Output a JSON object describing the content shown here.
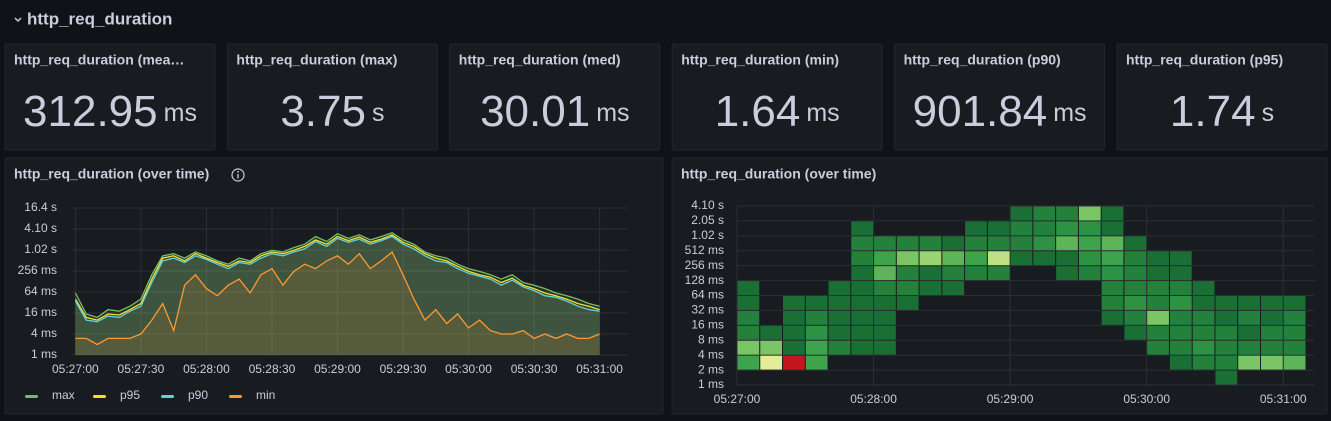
{
  "header": {
    "title": "http_req_duration"
  },
  "stats": [
    {
      "title": "http_req_duration (mea…",
      "value": 312.95,
      "unit": "ms"
    },
    {
      "title": "http_req_duration (max)",
      "value": 3.75,
      "unit": "s"
    },
    {
      "title": "http_req_duration (med)",
      "value": 30.01,
      "unit": "ms"
    },
    {
      "title": "http_req_duration (min)",
      "value": 1.64,
      "unit": "ms"
    },
    {
      "title": "http_req_duration (p90)",
      "value": 901.84,
      "unit": "ms"
    },
    {
      "title": "http_req_duration (p95)",
      "value": 1.74,
      "unit": "s"
    }
  ],
  "chart_data": [
    {
      "type": "line",
      "title": "http_req_duration (over time)",
      "log_scale": true,
      "grid": true,
      "legend": "bottom",
      "x": [
        "05:27:00",
        "05:27:05",
        "05:27:10",
        "05:27:15",
        "05:27:20",
        "05:27:25",
        "05:27:30",
        "05:27:35",
        "05:27:40",
        "05:27:45",
        "05:27:50",
        "05:27:55",
        "05:28:00",
        "05:28:05",
        "05:28:10",
        "05:28:15",
        "05:28:20",
        "05:28:25",
        "05:28:30",
        "05:28:35",
        "05:28:40",
        "05:28:45",
        "05:28:50",
        "05:28:55",
        "05:29:00",
        "05:29:05",
        "05:29:10",
        "05:29:15",
        "05:29:20",
        "05:29:25",
        "05:29:30",
        "05:29:35",
        "05:29:40",
        "05:29:45",
        "05:29:50",
        "05:29:55",
        "05:30:00",
        "05:30:05",
        "05:30:10",
        "05:30:15",
        "05:30:20",
        "05:30:25",
        "05:30:30",
        "05:30:35",
        "05:30:40",
        "05:30:45",
        "05:30:50",
        "05:30:55",
        "05:31:00"
      ],
      "xlim": [
        "05:26:58",
        "05:31:13"
      ],
      "xticks": [
        "05:27:00",
        "05:27:30",
        "05:28:00",
        "05:28:30",
        "05:29:00",
        "05:29:30",
        "05:30:00",
        "05:30:30",
        "05:31:00"
      ],
      "ylim": [
        1,
        16384
      ],
      "yticks": [
        {
          "value": 1,
          "label": "1 ms"
        },
        {
          "value": 4,
          "label": "4 ms"
        },
        {
          "value": 16,
          "label": "16 ms"
        },
        {
          "value": 64,
          "label": "64 ms"
        },
        {
          "value": 256,
          "label": "256 ms"
        },
        {
          "value": 1024,
          "label": "1.02 s"
        },
        {
          "value": 4096,
          "label": "4.10 s"
        },
        {
          "value": 16384,
          "label": "16.4 s"
        }
      ],
      "series": [
        {
          "name": "max",
          "color": "#73bf69",
          "values": [
            60,
            15,
            12,
            20,
            18,
            25,
            40,
            200,
            700,
            800,
            600,
            900,
            700,
            500,
            400,
            600,
            500,
            800,
            1000,
            900,
            1200,
            1500,
            2500,
            1800,
            3000,
            2200,
            2800,
            2000,
            2500,
            3200,
            2000,
            1500,
            900,
            700,
            600,
            400,
            300,
            250,
            200,
            150,
            200,
            120,
            100,
            80,
            60,
            50,
            40,
            30,
            25
          ]
        },
        {
          "name": "p95",
          "color": "#fade2a",
          "values": [
            40,
            12,
            10,
            15,
            14,
            20,
            30,
            150,
            600,
            700,
            500,
            800,
            600,
            450,
            350,
            500,
            450,
            700,
            900,
            800,
            1000,
            1300,
            2000,
            1500,
            2500,
            1900,
            2400,
            1700,
            2100,
            2800,
            1700,
            1300,
            800,
            600,
            500,
            350,
            250,
            200,
            170,
            120,
            160,
            100,
            80,
            60,
            50,
            40,
            30,
            25,
            20
          ]
        },
        {
          "name": "p90",
          "color": "#5ed4e0",
          "values": [
            35,
            10,
            9,
            13,
            12,
            18,
            25,
            120,
            500,
            600,
            450,
            700,
            550,
            400,
            300,
            450,
            400,
            600,
            800,
            700,
            900,
            1100,
            1800,
            1300,
            2200,
            1700,
            2100,
            1500,
            1900,
            2500,
            1500,
            1100,
            700,
            500,
            450,
            300,
            220,
            180,
            150,
            100,
            140,
            90,
            70,
            50,
            45,
            35,
            25,
            20,
            18
          ]
        },
        {
          "name": "min",
          "color": "#ff9830",
          "values": [
            3,
            3,
            2,
            3,
            3,
            3,
            4,
            10,
            30,
            5,
            100,
            200,
            80,
            50,
            100,
            150,
            60,
            200,
            300,
            100,
            250,
            400,
            300,
            500,
            700,
            400,
            800,
            300,
            500,
            900,
            200,
            40,
            10,
            20,
            8,
            15,
            6,
            10,
            5,
            4,
            4,
            5,
            3,
            4,
            3,
            4,
            3,
            3,
            4
          ]
        }
      ]
    },
    {
      "type": "heatmap",
      "title": "http_req_duration (over time)",
      "log_scale": true,
      "grid": true,
      "colors": [
        "#196f34",
        "#37a04a",
        "#8fcf6c",
        "#f2f0a0",
        "#f59a55",
        "#c4161c"
      ],
      "x": [
        "05:27:00",
        "05:27:10",
        "05:27:20",
        "05:27:30",
        "05:27:40",
        "05:27:50",
        "05:28:00",
        "05:28:10",
        "05:28:20",
        "05:28:30",
        "05:28:40",
        "05:28:50",
        "05:29:00",
        "05:29:10",
        "05:29:20",
        "05:29:30",
        "05:29:40",
        "05:29:50",
        "05:30:00",
        "05:30:10",
        "05:30:20",
        "05:30:30",
        "05:30:40",
        "05:30:50",
        "05:31:00"
      ],
      "xlim": [
        "05:27:00",
        "05:31:10"
      ],
      "xticks": [
        "05:27:00",
        "05:28:00",
        "05:29:00",
        "05:30:00",
        "05:31:00"
      ],
      "ylim": [
        1,
        4096
      ],
      "yticks": [
        {
          "value": 1,
          "label": "1 ms"
        },
        {
          "value": 2,
          "label": "2 ms"
        },
        {
          "value": 4,
          "label": "4 ms"
        },
        {
          "value": 8,
          "label": "8 ms"
        },
        {
          "value": 16,
          "label": "16 ms"
        },
        {
          "value": 32,
          "label": "32 ms"
        },
        {
          "value": 64,
          "label": "64 ms"
        },
        {
          "value": 128,
          "label": "128 ms"
        },
        {
          "value": 256,
          "label": "256 ms"
        },
        {
          "value": 512,
          "label": "512 ms"
        },
        {
          "value": 1024,
          "label": "1.02 s"
        },
        {
          "value": 2048,
          "label": "2.05 s"
        },
        {
          "value": 4096,
          "label": "4.10 s"
        }
      ],
      "values": [
        [
          null,
          4,
          6,
          2,
          2,
          1,
          1,
          null,
          null,
          null,
          null,
          null
        ],
        [
          null,
          9,
          6,
          1,
          null,
          null,
          null,
          null,
          null,
          null,
          null,
          null
        ],
        [
          null,
          15,
          1,
          1,
          1,
          1,
          null,
          null,
          null,
          null,
          null,
          null
        ],
        [
          null,
          4,
          4,
          3,
          2,
          1,
          null,
          null,
          null,
          null,
          null,
          null
        ],
        [
          null,
          null,
          2,
          1,
          1,
          1,
          1,
          null,
          null,
          null,
          null,
          null
        ],
        [
          null,
          null,
          1,
          1,
          1,
          1,
          1,
          1,
          2,
          2,
          1,
          null
        ],
        [
          null,
          null,
          1,
          1,
          1,
          1,
          2,
          5,
          4,
          2,
          null,
          null
        ],
        [
          null,
          null,
          null,
          null,
          null,
          1,
          2,
          2,
          6,
          2,
          null,
          null
        ],
        [
          null,
          null,
          null,
          null,
          null,
          null,
          1,
          1,
          7,
          2,
          null,
          null
        ],
        [
          null,
          null,
          null,
          null,
          null,
          null,
          1,
          2,
          5,
          1,
          null,
          null
        ],
        [
          null,
          null,
          null,
          null,
          null,
          null,
          null,
          2,
          4,
          2,
          1,
          null
        ],
        [
          null,
          null,
          null,
          null,
          null,
          null,
          null,
          2,
          8,
          2,
          1,
          null
        ],
        [
          null,
          null,
          null,
          null,
          null,
          null,
          null,
          null,
          1,
          2,
          2,
          1
        ],
        [
          null,
          null,
          null,
          null,
          null,
          null,
          null,
          null,
          1,
          3,
          2,
          2
        ],
        [
          null,
          null,
          null,
          null,
          null,
          null,
          null,
          1,
          1,
          5,
          3,
          2
        ],
        [
          null,
          null,
          null,
          null,
          null,
          null,
          null,
          2,
          3,
          4,
          3,
          6
        ],
        [
          null,
          null,
          null,
          null,
          1,
          2,
          2,
          3,
          4,
          5,
          1,
          1
        ],
        [
          null,
          null,
          null,
          1,
          2,
          3,
          2,
          2,
          2,
          1,
          null,
          null
        ],
        [
          null,
          null,
          2,
          2,
          6,
          2,
          2,
          1,
          1,
          null,
          null,
          null
        ],
        [
          null,
          1,
          2,
          2,
          2,
          3,
          2,
          1,
          1,
          null,
          null,
          null
        ],
        [
          null,
          2,
          3,
          2,
          2,
          1,
          1,
          null,
          null,
          null,
          null,
          null
        ],
        [
          1,
          2,
          2,
          2,
          1,
          1,
          null,
          null,
          null,
          null,
          null,
          null
        ],
        [
          null,
          6,
          2,
          1,
          2,
          1,
          null,
          null,
          null,
          null,
          null,
          null
        ],
        [
          null,
          6,
          2,
          2,
          1,
          1,
          null,
          null,
          null,
          null,
          null,
          null
        ],
        [
          null,
          5,
          2,
          2,
          2,
          1,
          null,
          null,
          null,
          null,
          null,
          null
        ]
      ]
    }
  ]
}
